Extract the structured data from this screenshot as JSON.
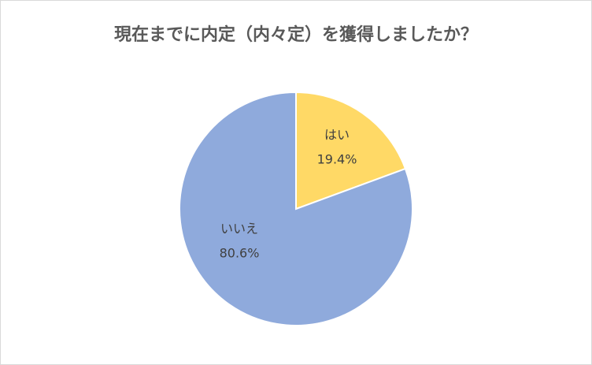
{
  "chart_data": {
    "type": "pie",
    "title": "現在までに内定（内々定）を獲得しましたか？",
    "categories": [
      "はい",
      "いいえ"
    ],
    "values": [
      19.4,
      80.6
    ],
    "value_labels": [
      "19.4%",
      "80.6%"
    ],
    "colors": [
      "#FFD966",
      "#8FAADC"
    ]
  }
}
